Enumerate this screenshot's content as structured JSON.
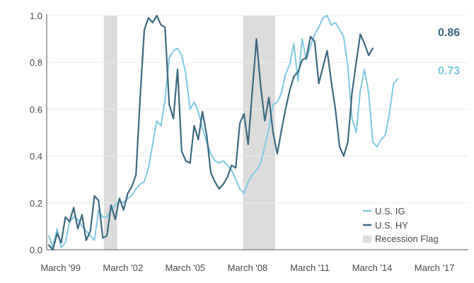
{
  "chart_data": {
    "type": "line",
    "title": "",
    "xlabel": "",
    "ylabel": "",
    "ylim": [
      0,
      1
    ],
    "yticks": [
      0.0,
      0.2,
      0.4,
      0.6,
      0.8,
      1.0
    ],
    "ytick_labels": [
      "0.0",
      "0.2",
      "0.4",
      "0.6",
      "0.8",
      "1.0"
    ],
    "xlim": [
      1998.5,
      2018.8
    ],
    "xticks": [
      1999.17,
      2002.17,
      2005.17,
      2008.17,
      2011.17,
      2014.17,
      2017.17
    ],
    "xtick_labels": [
      "March '99",
      "March '02",
      "March '05",
      "March '08",
      "March '11",
      "March '14",
      "March '17"
    ],
    "grid": "horizontal",
    "legend_position": "bottom-right",
    "recession_label": "Recession Flag",
    "recession_color": "#dcdcdc",
    "recessions": [
      [
        2001.25,
        2001.9
      ],
      [
        2007.95,
        2009.5
      ]
    ],
    "series": [
      {
        "name": "U.S. IG",
        "color": "#7ecae2",
        "end_label": "0.73",
        "points": [
          [
            1998.6,
            0.06
          ],
          [
            1998.8,
            0.01
          ],
          [
            1999.0,
            0.09
          ],
          [
            1999.2,
            0.01
          ],
          [
            1999.4,
            0.03
          ],
          [
            1999.6,
            0.12
          ],
          [
            1999.8,
            0.14
          ],
          [
            2000.0,
            0.13
          ],
          [
            2000.2,
            0.1
          ],
          [
            2000.4,
            0.08
          ],
          [
            2000.6,
            0.06
          ],
          [
            2000.8,
            0.04
          ],
          [
            2001.0,
            0.17
          ],
          [
            2001.2,
            0.14
          ],
          [
            2001.4,
            0.14
          ],
          [
            2001.6,
            0.17
          ],
          [
            2001.8,
            0.19
          ],
          [
            2002.0,
            0.21
          ],
          [
            2002.2,
            0.2
          ],
          [
            2002.4,
            0.22
          ],
          [
            2002.6,
            0.23
          ],
          [
            2002.8,
            0.26
          ],
          [
            2003.0,
            0.28
          ],
          [
            2003.2,
            0.29
          ],
          [
            2003.4,
            0.35
          ],
          [
            2003.6,
            0.45
          ],
          [
            2003.8,
            0.55
          ],
          [
            2004.0,
            0.53
          ],
          [
            2004.2,
            0.64
          ],
          [
            2004.4,
            0.82
          ],
          [
            2004.6,
            0.85
          ],
          [
            2004.8,
            0.86
          ],
          [
            2005.0,
            0.83
          ],
          [
            2005.2,
            0.75
          ],
          [
            2005.4,
            0.6
          ],
          [
            2005.6,
            0.63
          ],
          [
            2005.8,
            0.59
          ],
          [
            2006.0,
            0.52
          ],
          [
            2006.2,
            0.46
          ],
          [
            2006.4,
            0.41
          ],
          [
            2006.6,
            0.38
          ],
          [
            2006.8,
            0.37
          ],
          [
            2007.0,
            0.38
          ],
          [
            2007.2,
            0.36
          ],
          [
            2007.4,
            0.34
          ],
          [
            2007.6,
            0.3
          ],
          [
            2007.8,
            0.26
          ],
          [
            2008.0,
            0.24
          ],
          [
            2008.2,
            0.29
          ],
          [
            2008.4,
            0.32
          ],
          [
            2008.6,
            0.34
          ],
          [
            2008.8,
            0.37
          ],
          [
            2009.0,
            0.44
          ],
          [
            2009.2,
            0.52
          ],
          [
            2009.4,
            0.62
          ],
          [
            2009.6,
            0.63
          ],
          [
            2009.8,
            0.67
          ],
          [
            2010.0,
            0.75
          ],
          [
            2010.2,
            0.79
          ],
          [
            2010.4,
            0.88
          ],
          [
            2010.6,
            0.72
          ],
          [
            2010.8,
            0.9
          ],
          [
            2011.0,
            0.81
          ],
          [
            2011.2,
            0.87
          ],
          [
            2011.4,
            0.92
          ],
          [
            2011.6,
            0.95
          ],
          [
            2011.8,
            0.99
          ],
          [
            2012.0,
            1.0
          ],
          [
            2012.2,
            0.96
          ],
          [
            2012.4,
            0.97
          ],
          [
            2012.6,
            0.94
          ],
          [
            2012.8,
            0.91
          ],
          [
            2013.0,
            0.78
          ],
          [
            2013.2,
            0.56
          ],
          [
            2013.4,
            0.5
          ],
          [
            2013.6,
            0.68
          ],
          [
            2013.8,
            0.77
          ],
          [
            2014.0,
            0.67
          ],
          [
            2014.2,
            0.46
          ],
          [
            2014.4,
            0.44
          ],
          [
            2014.6,
            0.47
          ],
          [
            2014.8,
            0.49
          ],
          [
            2015.0,
            0.58
          ],
          [
            2015.2,
            0.71
          ],
          [
            2015.4,
            0.73
          ]
        ]
      },
      {
        "name": "U.S. HY",
        "color": "#3d6a80",
        "end_label": "0.86",
        "points": [
          [
            1998.6,
            0.02
          ],
          [
            1998.8,
            0.0
          ],
          [
            1999.0,
            0.07
          ],
          [
            1999.2,
            0.03
          ],
          [
            1999.4,
            0.14
          ],
          [
            1999.6,
            0.12
          ],
          [
            1999.8,
            0.18
          ],
          [
            2000.0,
            0.09
          ],
          [
            2000.2,
            0.15
          ],
          [
            2000.4,
            0.04
          ],
          [
            2000.6,
            0.08
          ],
          [
            2000.8,
            0.23
          ],
          [
            2001.0,
            0.21
          ],
          [
            2001.2,
            0.05
          ],
          [
            2001.4,
            0.06
          ],
          [
            2001.6,
            0.19
          ],
          [
            2001.8,
            0.13
          ],
          [
            2002.0,
            0.22
          ],
          [
            2002.2,
            0.17
          ],
          [
            2002.4,
            0.24
          ],
          [
            2002.6,
            0.27
          ],
          [
            2002.8,
            0.32
          ],
          [
            2003.0,
            0.65
          ],
          [
            2003.2,
            0.94
          ],
          [
            2003.4,
            0.99
          ],
          [
            2003.6,
            0.97
          ],
          [
            2003.8,
            1.0
          ],
          [
            2004.0,
            0.96
          ],
          [
            2004.2,
            0.95
          ],
          [
            2004.4,
            0.62
          ],
          [
            2004.6,
            0.56
          ],
          [
            2004.8,
            0.77
          ],
          [
            2005.0,
            0.42
          ],
          [
            2005.2,
            0.38
          ],
          [
            2005.4,
            0.37
          ],
          [
            2005.6,
            0.53
          ],
          [
            2005.8,
            0.47
          ],
          [
            2006.0,
            0.59
          ],
          [
            2006.2,
            0.49
          ],
          [
            2006.4,
            0.33
          ],
          [
            2006.6,
            0.29
          ],
          [
            2006.8,
            0.26
          ],
          [
            2007.0,
            0.28
          ],
          [
            2007.2,
            0.31
          ],
          [
            2007.4,
            0.36
          ],
          [
            2007.6,
            0.35
          ],
          [
            2007.8,
            0.54
          ],
          [
            2008.0,
            0.58
          ],
          [
            2008.2,
            0.45
          ],
          [
            2008.4,
            0.68
          ],
          [
            2008.6,
            0.9
          ],
          [
            2008.8,
            0.7
          ],
          [
            2009.0,
            0.55
          ],
          [
            2009.2,
            0.65
          ],
          [
            2009.4,
            0.5
          ],
          [
            2009.6,
            0.41
          ],
          [
            2009.8,
            0.51
          ],
          [
            2010.0,
            0.6
          ],
          [
            2010.2,
            0.68
          ],
          [
            2010.4,
            0.74
          ],
          [
            2010.6,
            0.76
          ],
          [
            2010.8,
            0.81
          ],
          [
            2011.0,
            0.82
          ],
          [
            2011.2,
            0.91
          ],
          [
            2011.4,
            0.89
          ],
          [
            2011.6,
            0.71
          ],
          [
            2011.8,
            0.78
          ],
          [
            2012.0,
            0.85
          ],
          [
            2012.2,
            0.72
          ],
          [
            2012.4,
            0.6
          ],
          [
            2012.6,
            0.44
          ],
          [
            2012.8,
            0.4
          ],
          [
            2013.0,
            0.46
          ],
          [
            2013.2,
            0.67
          ],
          [
            2013.4,
            0.8
          ],
          [
            2013.6,
            0.92
          ],
          [
            2013.8,
            0.88
          ],
          [
            2014.0,
            0.83
          ],
          [
            2014.2,
            0.86
          ]
        ]
      }
    ]
  }
}
